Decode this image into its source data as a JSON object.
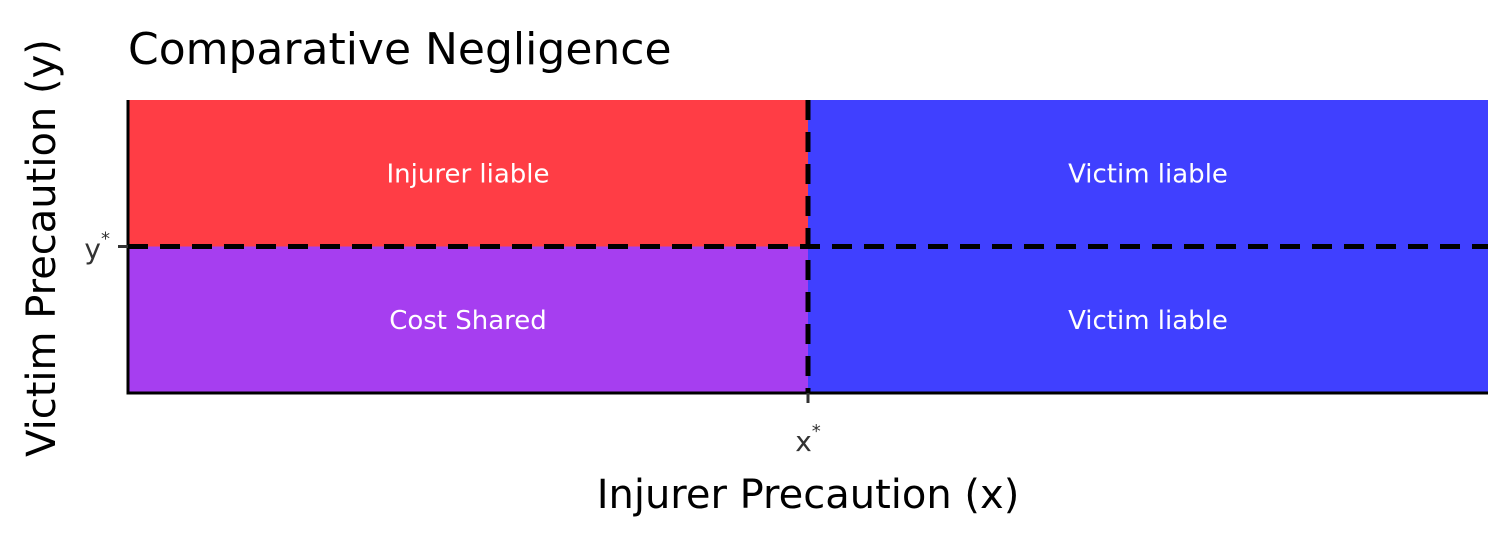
{
  "chart_data": {
    "type": "heatmap",
    "title": "Comparative Negligence",
    "xlabel": "Injurer Precaution (x)",
    "ylabel": "Victim Precaution (y)",
    "xlim": [
      0,
      2
    ],
    "ylim": [
      0,
      2
    ],
    "grid": false,
    "x_threshold": {
      "value": 1,
      "label_base": "x",
      "label_sup": "*"
    },
    "y_threshold": {
      "value": 1,
      "label_base": "y",
      "label_sup": "*"
    },
    "regions": [
      {
        "name": "injurer-liable",
        "label": "Injurer liable",
        "x": [
          0,
          1
        ],
        "y": [
          1,
          2
        ],
        "color": "#ff3d45"
      },
      {
        "name": "victim-liable-top",
        "label": "Victim liable",
        "x": [
          1,
          2
        ],
        "y": [
          1,
          2
        ],
        "color": "#4040ff"
      },
      {
        "name": "cost-shared",
        "label": "Cost Shared",
        "x": [
          0,
          1
        ],
        "y": [
          0,
          1
        ],
        "color": "#a63ef0"
      },
      {
        "name": "victim-liable-bottom",
        "label": "Victim liable",
        "x": [
          1,
          2
        ],
        "y": [
          0,
          1
        ],
        "color": "#4040ff"
      }
    ]
  }
}
